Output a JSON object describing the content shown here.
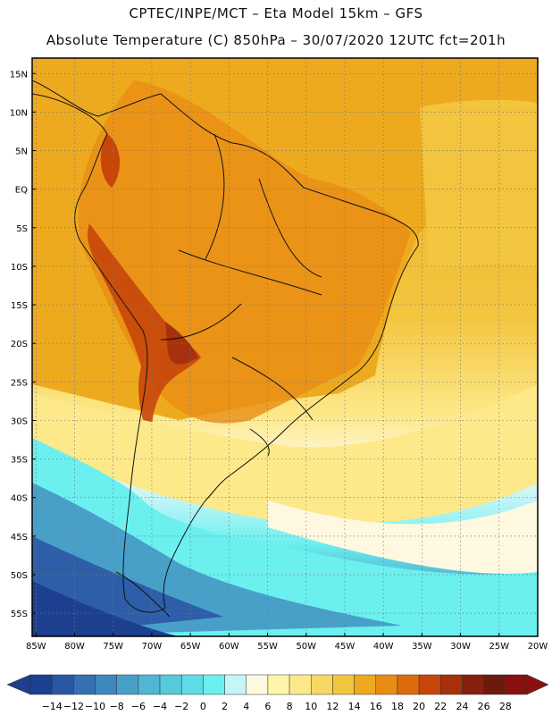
{
  "header": {
    "title_line1": "CPTEC/INPE/MCT –   Eta Model 15km – GFS",
    "title_line2": "Absolute Temperature (C) 850hPa – 30/07/2020 12UTC fct=201h"
  },
  "map": {
    "lat_labels": [
      "15N",
      "10N",
      "5N",
      "EQ",
      "5S",
      "10S",
      "15S",
      "20S",
      "25S",
      "30S",
      "35S",
      "40S",
      "45S",
      "50S",
      "55S"
    ],
    "lat_values": [
      15,
      10,
      5,
      0,
      -5,
      -10,
      -15,
      -20,
      -25,
      -30,
      -35,
      -40,
      -45,
      -50,
      -55
    ],
    "lon_labels": [
      "85W",
      "80W",
      "75W",
      "70W",
      "65W",
      "60W",
      "55W",
      "50W",
      "45W",
      "40W",
      "35W",
      "30W",
      "25W",
      "20W"
    ],
    "lon_values": [
      -85,
      -80,
      -75,
      -70,
      -65,
      -60,
      -55,
      -50,
      -45,
      -40,
      -35,
      -30,
      -25,
      -20
    ],
    "extent": {
      "lon_min": -85.5,
      "lon_max": -20,
      "lat_min": -58,
      "lat_max": 17
    }
  },
  "colorbar": {
    "labels": [
      "-14",
      "-12",
      "-10",
      "-8",
      "-6",
      "-4",
      "-2",
      "0",
      "2",
      "4",
      "6",
      "8",
      "10",
      "12",
      "14",
      "16",
      "18",
      "20",
      "22",
      "24",
      "26",
      "28"
    ],
    "colors": [
      "#1d3f8f",
      "#2a57a3",
      "#3570b2",
      "#3f87bf",
      "#48a0c9",
      "#4fb6d3",
      "#56cadc",
      "#5fdde6",
      "#6bf0ef",
      "#c6f5f7",
      "#fff8e0",
      "#fff4a8",
      "#fde98a",
      "#f8d864",
      "#f3c640",
      "#eeaa1e",
      "#e88d14",
      "#dd6a0c",
      "#c8460a",
      "#a8300c",
      "#86200f",
      "#6c1a10",
      "#8a1010"
    ]
  }
}
